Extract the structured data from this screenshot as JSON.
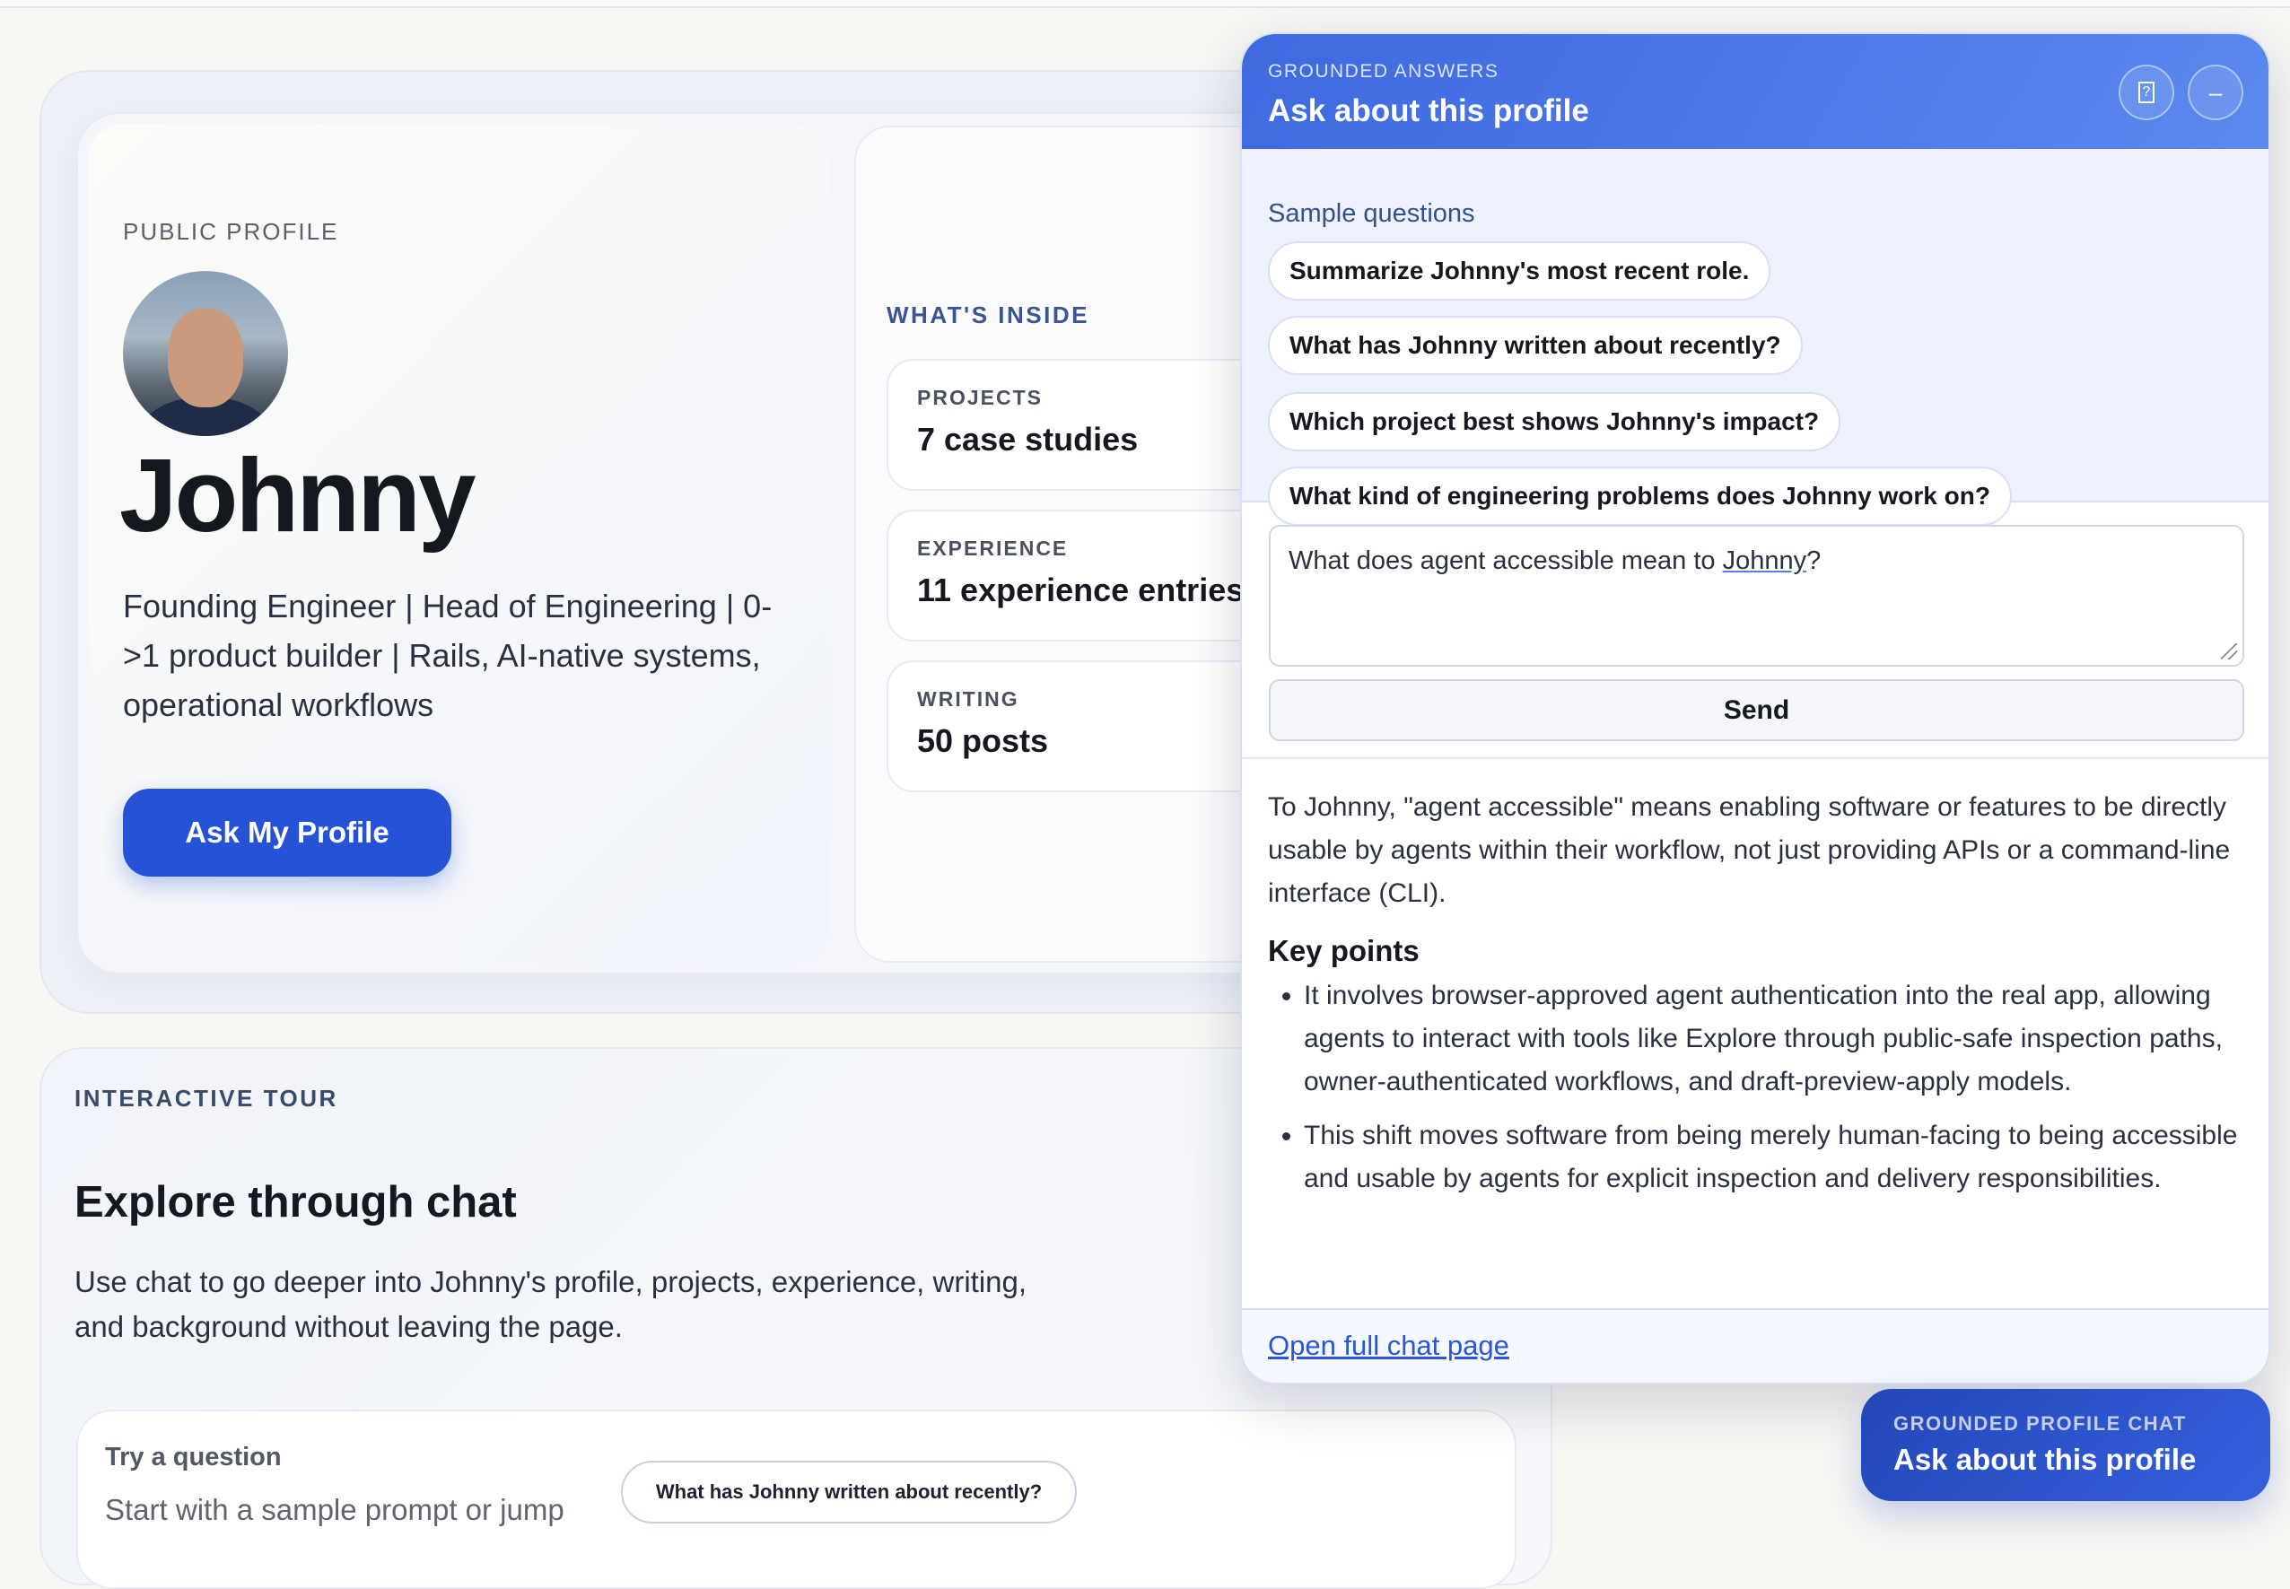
{
  "profile": {
    "eyebrow": "PUBLIC PROFILE",
    "name": "Johnny",
    "description": "Founding Engineer | Head of Engineering | 0->1 product builder | Rails, AI-native systems, operational workflows",
    "ask_button": "Ask My Profile"
  },
  "inside": {
    "title": "WHAT'S INSIDE",
    "stats": [
      {
        "label": "PROJECTS",
        "value": "7 case studies"
      },
      {
        "label": "EXPERIENCE",
        "value": "11 experience entries"
      },
      {
        "label": "WRITING",
        "value": "50 posts"
      }
    ]
  },
  "tour": {
    "eyebrow": "INTERACTIVE TOUR",
    "title": "Explore through chat",
    "text": "Use chat to go deeper into Johnny's profile, projects, experience, writing, and background without leaving the page.",
    "try_title": "Try a question",
    "try_sub": "Start with a sample prompt or jump",
    "try_chip": "What has Johnny written about recently?"
  },
  "chat": {
    "eyebrow": "GROUNDED ANSWERS",
    "title": "Ask about this profile",
    "help_icon": "help-box-icon",
    "minimize_icon": "minus-icon",
    "samples_label": "Sample questions",
    "samples": [
      "Summarize Johnny's most recent role.",
      "What has Johnny written about recently?",
      "Which project best shows Johnny's impact?",
      "What kind of engineering problems does Johnny work on?"
    ],
    "input_before": "What does agent accessible mean to ",
    "input_underlined": "Johnny",
    "input_after": "?",
    "send": "Send",
    "answer": {
      "intro": "To Johnny, \"agent accessible\" means enabling software or features to be directly usable by agents within their workflow, not just providing APIs or a command-line interface (CLI).",
      "heading": "Key points",
      "points": [
        "It involves browser-approved agent authentication into the real app, allowing agents to interact with tools like Explore through public-safe inspection paths, owner-authenticated workflows, and draft-preview-apply models.",
        "This shift moves software from being merely human-facing to being accessible and usable by agents for explicit inspection and delivery responsibilities."
      ]
    },
    "full_link": "Open full chat page"
  },
  "fab": {
    "eyebrow": "GROUNDED PROFILE CHAT",
    "title": "Ask about this profile"
  },
  "colors": {
    "accent": "#2552d6",
    "header": "#4a78e6",
    "samples_bg": "#edf2fd"
  }
}
